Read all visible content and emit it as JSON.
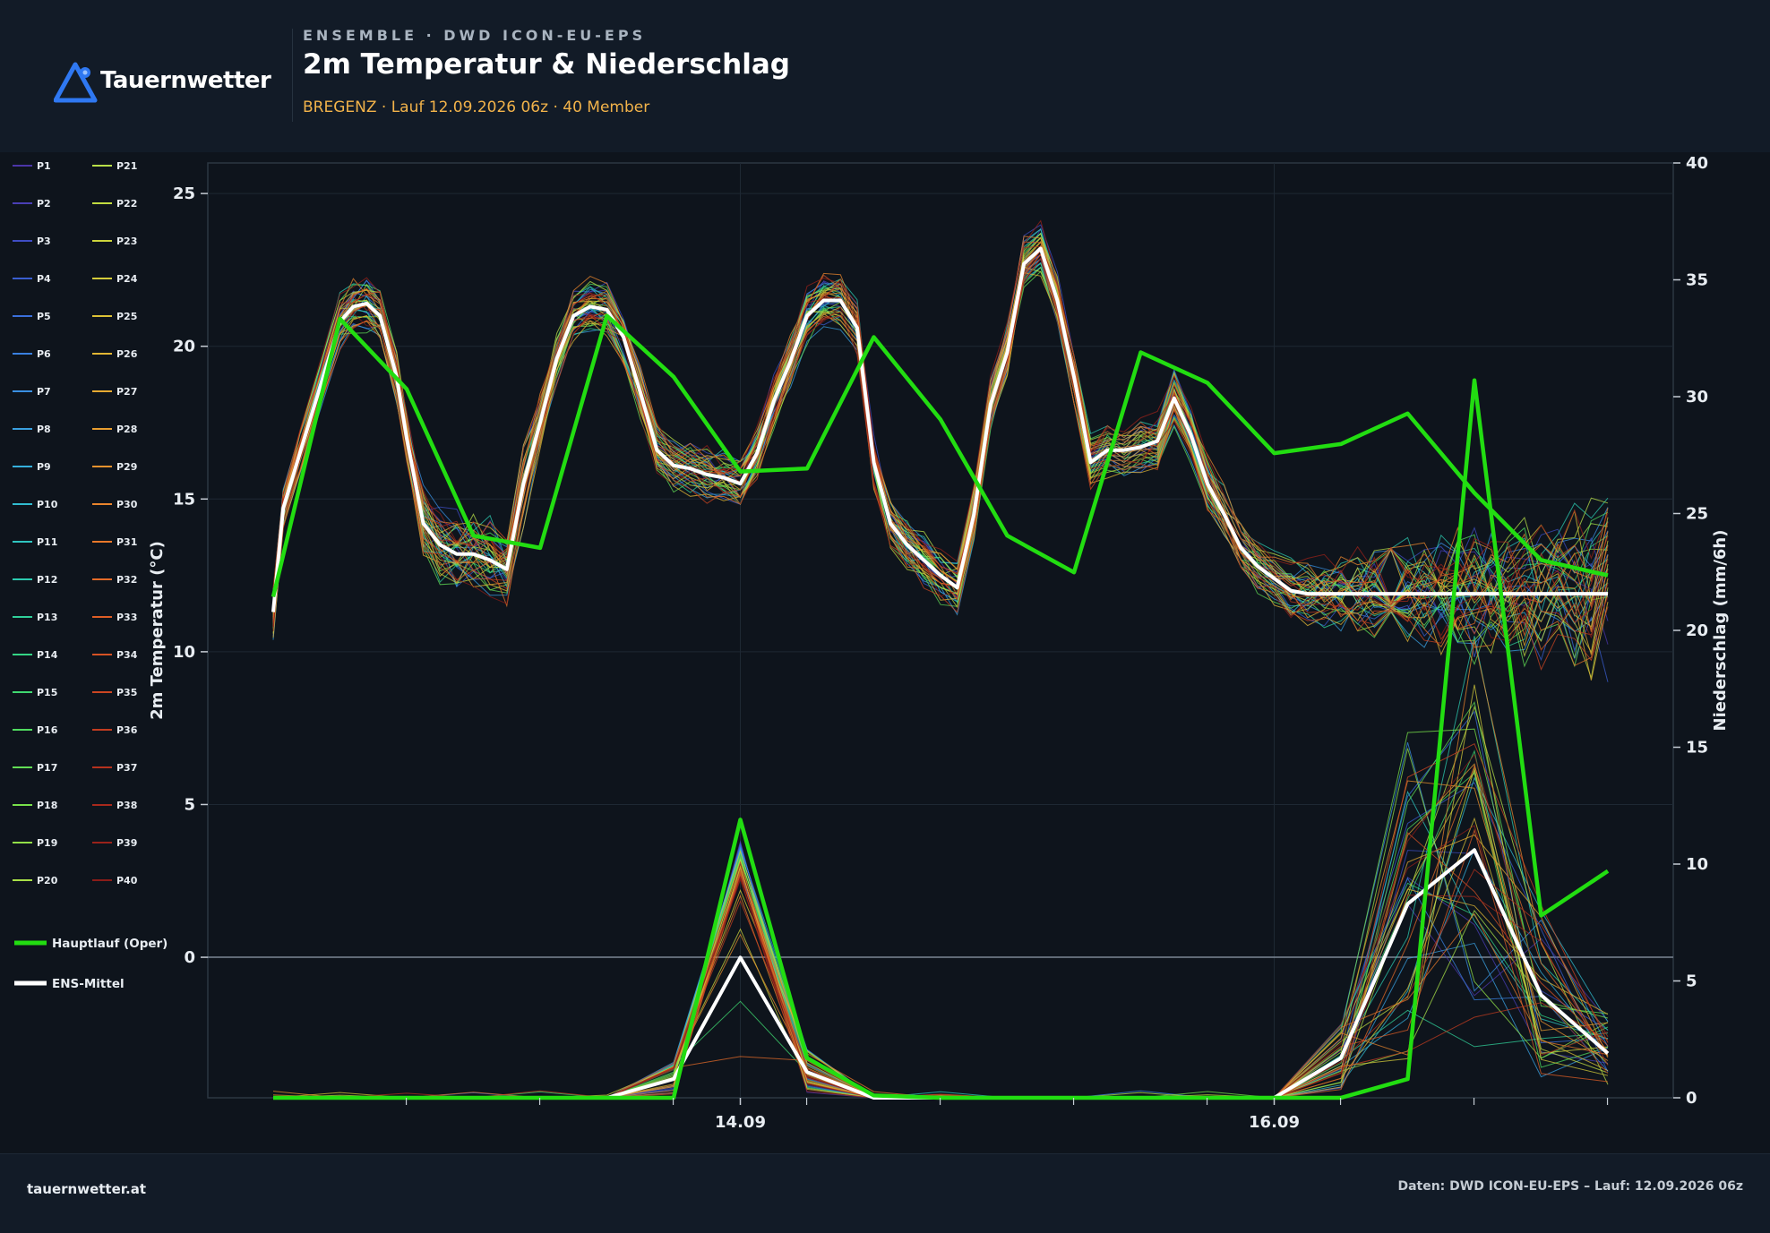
{
  "header": {
    "brand": "Tauernwetter",
    "kicker": "ENSEMBLE · DWD ICON-EU-EPS",
    "title": "2m Temperatur & Niederschlag",
    "subtitle": "BREGENZ · Lauf 12.09.2026 06z · 40 Member"
  },
  "footer": {
    "site": "tauernwetter.at",
    "credit": "Daten: DWD ICON-EU-EPS – Lauf: 12.09.2026 06z"
  },
  "colors": {
    "background": "#0e141c",
    "header": "#121b27",
    "oper": "#22dd11",
    "mean": "#ffffff",
    "accent": "#f2b34a",
    "logo": "#2f78f2"
  },
  "chart_data": {
    "type": "line",
    "title": "",
    "xlabel": "",
    "ylabel": "2m Temperatur (°C)",
    "y2label": "Niederschlag (mm/6h)",
    "x": [
      0,
      1,
      2,
      3,
      4,
      5,
      6,
      7,
      8,
      9,
      10,
      11,
      12,
      13,
      14,
      15,
      16,
      17,
      18,
      19,
      20
    ],
    "x_ticks": [
      {
        "x": 7,
        "label": "14.09"
      },
      {
        "x": 15,
        "label": "16.09"
      }
    ],
    "ylim": [
      -4.6,
      26
    ],
    "y_ticks": [
      0,
      5,
      10,
      15,
      20,
      25
    ],
    "y2lim": [
      0,
      40
    ],
    "y2_ticks": [
      0,
      5,
      10,
      15,
      20,
      25,
      30,
      35,
      40
    ],
    "grid": true,
    "legend_position": "left",
    "legend_members": [
      "P1",
      "P2",
      "P3",
      "P4",
      "P5",
      "P6",
      "P7",
      "P8",
      "P9",
      "P10",
      "P11",
      "P12",
      "P13",
      "P14",
      "P15",
      "P16",
      "P17",
      "P18",
      "P19",
      "P20",
      "P21",
      "P22",
      "P23",
      "P24",
      "P25",
      "P26",
      "P27",
      "P28",
      "P29",
      "P30",
      "P31",
      "P32",
      "P33",
      "P34",
      "P35",
      "P36",
      "P37",
      "P38",
      "P39",
      "P40"
    ],
    "legend_oper": "Hauptlauf (Oper)",
    "legend_mean": "ENS-Mittel",
    "temperature": {
      "x": [
        0,
        0.15,
        0.4,
        1,
        1.2,
        1.4,
        1.6,
        1.85,
        2,
        2.25,
        2.5,
        2.75,
        3,
        3.25,
        3.5,
        3.75,
        4,
        4.25,
        4.5,
        4.75,
        5,
        5.25,
        5.5,
        5.75,
        6,
        6.25,
        6.5,
        6.75,
        7,
        7.25,
        7.5,
        7.75,
        8,
        8.25,
        8.5,
        8.75,
        9,
        9.25,
        9.5,
        9.75,
        10,
        10.25,
        10.5,
        10.75,
        11,
        11.25,
        11.5,
        11.75,
        12,
        12.25,
        12.5,
        12.75,
        13,
        13.25,
        13.5,
        13.75,
        14,
        14.25,
        14.5,
        14.75,
        15,
        15.25,
        15.5,
        15.75,
        16,
        16.25,
        16.5,
        16.75,
        17,
        17.25,
        17.5,
        17.75,
        18,
        18.25,
        18.5,
        18.75,
        19,
        19.25,
        19.5,
        19.75,
        20
      ],
      "mean": [
        11.3,
        14.7,
        16.5,
        20.8,
        21.3,
        21.4,
        21.0,
        19.0,
        17.0,
        14.2,
        13.5,
        13.2,
        13.2,
        13.0,
        12.7,
        15.5,
        17.5,
        19.6,
        21.0,
        21.3,
        21.2,
        20.3,
        18.5,
        16.6,
        16.1,
        16.0,
        15.8,
        15.7,
        15.5,
        16.5,
        18.2,
        19.5,
        21.0,
        21.5,
        21.5,
        20.6,
        16.2,
        14.2,
        13.5,
        13.0,
        12.5,
        12.1,
        14.5,
        18.1,
        19.8,
        22.7,
        23.2,
        21.5,
        19.0,
        16.2,
        16.6,
        16.6,
        16.7,
        16.9,
        18.3,
        17.1,
        15.5,
        14.5,
        13.4,
        12.8,
        12.4,
        12.0,
        11.9,
        11.9,
        11.9,
        11.9,
        11.9,
        11.9,
        11.9,
        11.9,
        11.9,
        11.9,
        11.9,
        11.9,
        11.9,
        11.9,
        11.9,
        11.9,
        11.9,
        11.9,
        11.9
      ]
    },
    "oper_temperature": {
      "x": [
        0,
        1,
        2,
        3,
        4,
        5,
        6,
        7,
        8,
        9,
        10,
        11,
        12,
        13,
        14,
        15,
        16,
        17,
        18,
        19,
        20
      ],
      "values": [
        11.8,
        20.9,
        18.6,
        13.8,
        13.4,
        21.0,
        19.0,
        15.9,
        16.0,
        20.3,
        17.6,
        13.8,
        12.6,
        19.8,
        18.8,
        16.5,
        16.8,
        17.8,
        15.2,
        13.0,
        12.5
      ]
    },
    "precipitation": {
      "x": [
        0,
        1,
        2,
        3,
        4,
        5,
        6,
        7,
        8,
        9,
        10,
        11,
        12,
        13,
        14,
        15,
        16,
        17,
        18,
        19,
        20
      ],
      "mean": [
        0,
        0,
        0,
        0,
        0,
        0,
        0.8,
        6.0,
        1.1,
        0,
        0,
        0,
        0,
        0,
        0,
        0,
        1.7,
        8.3,
        10.6,
        4.4,
        1.9
      ],
      "oper": [
        0,
        0,
        0,
        0,
        0,
        0,
        0,
        11.9,
        1.7,
        0.1,
        0,
        0,
        0,
        0,
        0,
        0,
        0,
        0.8,
        30.7,
        7.8,
        9.7
      ]
    }
  }
}
